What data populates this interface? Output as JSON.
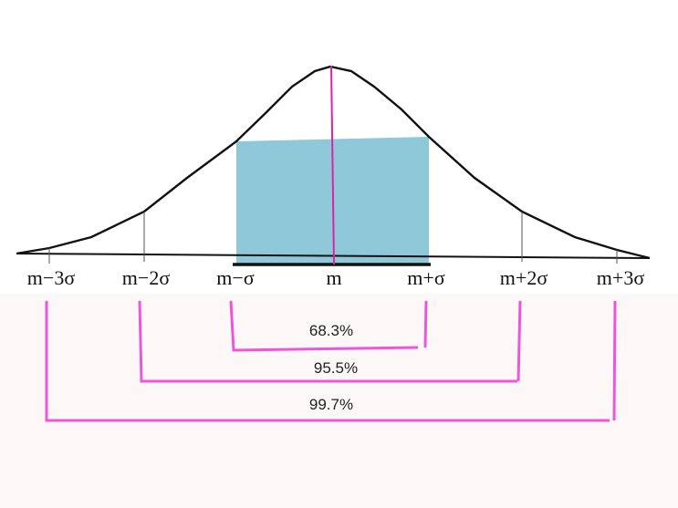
{
  "axis_labels": {
    "m_minus_3": "m−3σ",
    "m_minus_2": "m−2σ",
    "m_minus_1": "m−σ",
    "m": "m",
    "m_plus_1": "m+σ",
    "m_plus_2": "m+2σ",
    "m_plus_3": "m+3σ"
  },
  "ranges": {
    "one_sigma": "68.3%",
    "two_sigma": "95.5%",
    "three_sigma": "99.7%"
  },
  "colors": {
    "shaded_area": "#8fc8d8",
    "bracket": "#ee55dd",
    "center_line": "#dd22aa",
    "curve": "#111111",
    "lower_band": "#fcf8f8"
  }
}
